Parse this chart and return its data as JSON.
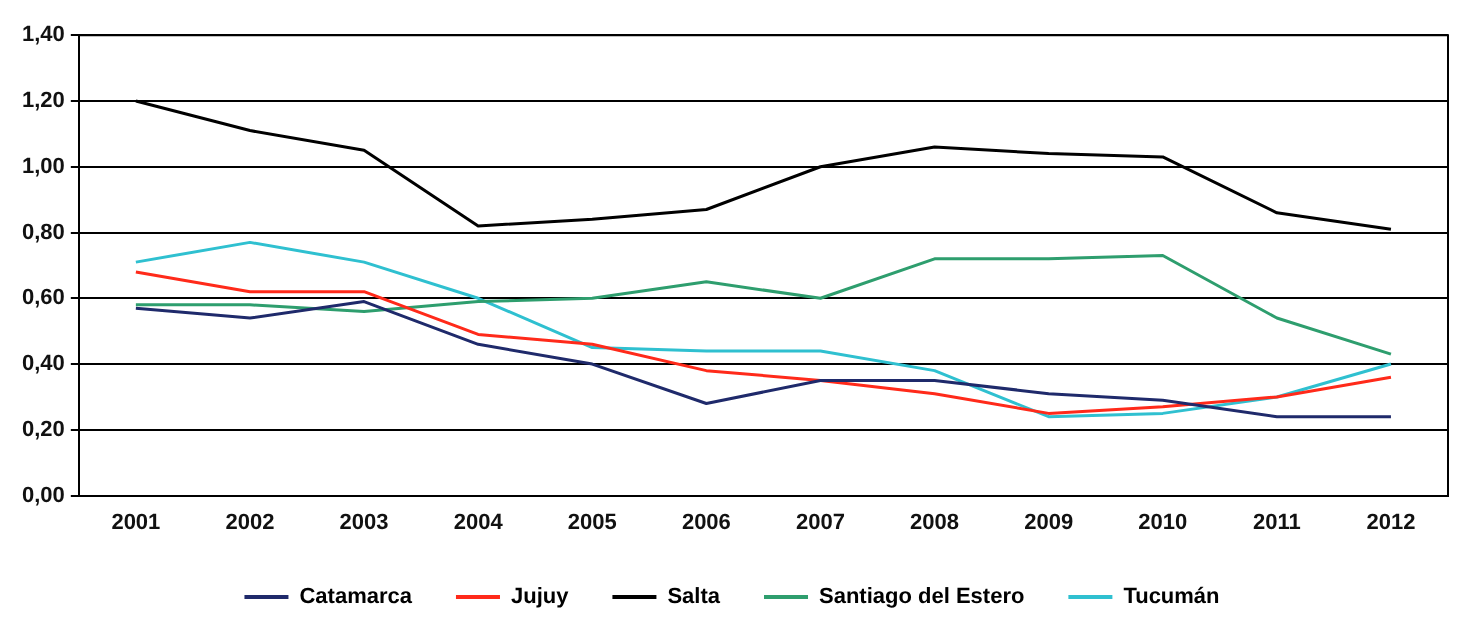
{
  "chart_data": {
    "type": "line",
    "categories": [
      "2001",
      "2002",
      "2003",
      "2004",
      "2005",
      "2006",
      "2007",
      "2008",
      "2009",
      "2010",
      "2011",
      "2012"
    ],
    "series": [
      {
        "name": "Catamarca",
        "color": "#1f2a6b",
        "values": [
          0.57,
          0.54,
          0.59,
          0.46,
          0.4,
          0.28,
          0.35,
          0.35,
          0.31,
          0.29,
          0.24,
          0.24
        ]
      },
      {
        "name": "Jujuy",
        "color": "#ff2a1a",
        "values": [
          0.68,
          0.62,
          0.62,
          0.49,
          0.46,
          0.38,
          0.35,
          0.31,
          0.25,
          0.27,
          0.3,
          0.36
        ]
      },
      {
        "name": "Salta",
        "color": "#000000",
        "values": [
          1.2,
          1.11,
          1.05,
          0.82,
          0.84,
          0.87,
          1.0,
          1.06,
          1.04,
          1.03,
          0.86,
          0.81
        ]
      },
      {
        "name": "Santiago del Estero",
        "color": "#2e9e6e",
        "values": [
          0.58,
          0.58,
          0.56,
          0.59,
          0.6,
          0.65,
          0.6,
          0.72,
          0.72,
          0.73,
          0.54,
          0.43
        ]
      },
      {
        "name": "Tucumán",
        "color": "#2fc0d0",
        "values": [
          0.71,
          0.77,
          0.71,
          0.6,
          0.45,
          0.44,
          0.44,
          0.38,
          0.24,
          0.25,
          0.3,
          0.4
        ]
      }
    ],
    "ylim": [
      0,
      1.4
    ],
    "yticks": [
      {
        "value": 0,
        "label": "0,00"
      },
      {
        "value": 0.2,
        "label": "0,20"
      },
      {
        "value": 0.4,
        "label": "0,40"
      },
      {
        "value": 0.6,
        "label": "0,60"
      },
      {
        "value": 0.8,
        "label": "0,80"
      },
      {
        "value": 1.0,
        "label": "1,00"
      },
      {
        "value": 1.2,
        "label": "1,20"
      },
      {
        "value": 1.4,
        "label": "1,40"
      }
    ],
    "grid": "y",
    "legend": "bottom",
    "marker": "none",
    "line_style": "solid"
  }
}
